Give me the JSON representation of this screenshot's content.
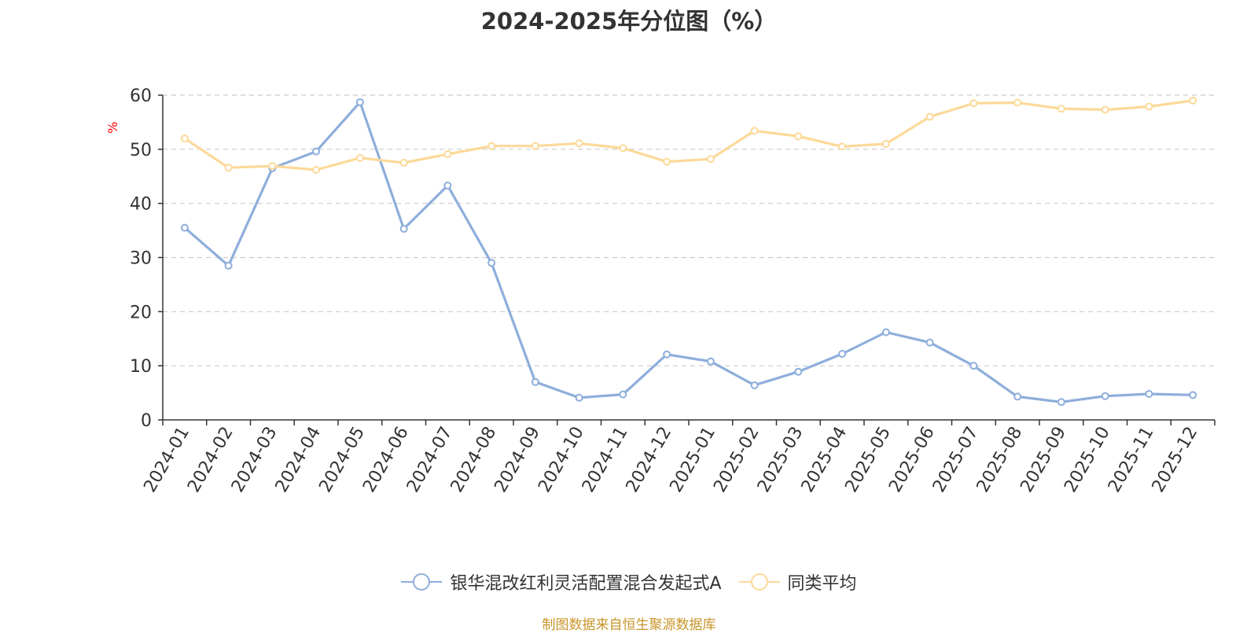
{
  "chart_data": {
    "type": "line",
    "title": "2024-2025年分位图（%）",
    "ylabel": "%",
    "xlabel": "",
    "ylim": [
      0,
      60
    ],
    "yticks": [
      0,
      10,
      20,
      30,
      40,
      50,
      60
    ],
    "grid": true,
    "legend_position": "bottom-center",
    "categories": [
      "2024-01",
      "2024-02",
      "2024-03",
      "2024-04",
      "2024-05",
      "2024-06",
      "2024-07",
      "2024-08",
      "2024-09",
      "2024-10",
      "2024-11",
      "2024-12",
      "2025-01",
      "2025-02",
      "2025-03",
      "2025-04",
      "2025-05",
      "2025-06",
      "2025-07",
      "2025-08",
      "2025-09",
      "2025-10",
      "2025-11",
      "2025-12"
    ],
    "series": [
      {
        "name": "银华混改红利灵活配置混合发起式A",
        "color": "#8eaedb",
        "values": [
          35.5,
          28.5,
          46.5,
          49.6,
          58.7,
          35.3,
          43.3,
          29.0,
          7.0,
          4.1,
          4.7,
          12.1,
          10.8,
          6.4,
          8.9,
          12.2,
          16.2,
          14.3,
          10.0,
          4.3,
          3.3,
          4.4,
          4.8,
          4.6
        ]
      },
      {
        "name": "同类平均",
        "color": "#fcd999",
        "values": [
          52.0,
          46.6,
          46.9,
          46.2,
          48.4,
          47.5,
          49.1,
          50.6,
          50.6,
          51.1,
          50.2,
          47.7,
          48.2,
          53.4,
          52.4,
          50.5,
          51.0,
          56.0,
          58.5,
          58.6,
          57.5,
          57.3,
          57.9,
          59.0
        ]
      }
    ]
  },
  "source_text": "制图数据来自恒生聚源数据库"
}
